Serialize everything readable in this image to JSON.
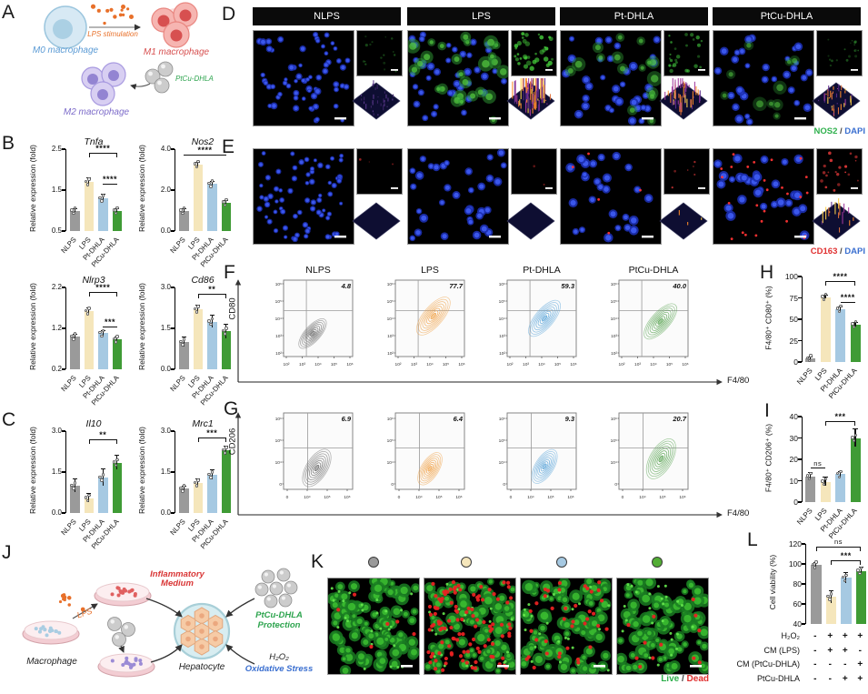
{
  "bar_colors": [
    "#9a9a9a",
    "#f5e6bb",
    "#a6c9e2",
    "#3f9b35"
  ],
  "flow_colors": [
    "#6b6b6b",
    "#f0a044",
    "#59a4d9",
    "#55a24e"
  ],
  "panels": {
    "A": {
      "letter": "A",
      "m0_label": "M0 macrophage",
      "m1_label": "M1 macrophage",
      "m2_label": "M2 macrophage",
      "stim_label": "LPS stimulation",
      "np_label": "PtCu-DHLA"
    },
    "B": {
      "letter": "B"
    },
    "C": {
      "letter": "C"
    },
    "D": {
      "letter": "D",
      "headers": [
        "NLPS",
        "LPS",
        "Pt-DHLA",
        "PtCu-DHLA"
      ],
      "legend": [
        {
          "text": "NOS2",
          "color": "#2eb04c"
        },
        {
          "text": " / ",
          "color": "#444444"
        },
        {
          "text": "DAPI",
          "color": "#3a6fd0"
        }
      ]
    },
    "E": {
      "letter": "E",
      "legend": [
        {
          "text": "CD163",
          "color": "#e03131"
        },
        {
          "text": " / ",
          "color": "#444444"
        },
        {
          "text": "DAPI",
          "color": "#3a6fd0"
        }
      ]
    },
    "F": {
      "letter": "F",
      "headers": [
        "NLPS",
        "LPS",
        "Pt-DHLA",
        "PtCu-DHLA"
      ]
    },
    "G": {
      "letter": "G"
    },
    "H": {
      "letter": "H"
    },
    "I": {
      "letter": "I"
    },
    "J": {
      "letter": "J",
      "labels": {
        "macrophage": "Macrophage",
        "lps": "LPS",
        "inflammatory": "Inflammatory Medium",
        "hepatocyte": "Hepatocyte",
        "protection": "PtCu-DHLA Protection",
        "h2o2": "H₂O₂",
        "oxidative": "Oxidative Stress"
      }
    },
    "K": {
      "letter": "K",
      "dot_colors": [
        "#9a9a9a",
        "#f5e6bb",
        "#a6c9e2",
        "#53ad35"
      ],
      "legend": [
        {
          "text": "Live",
          "color": "#2eb04c"
        },
        {
          "text": " / ",
          "color": "#444444"
        },
        {
          "text": "Dead",
          "color": "#e03131"
        }
      ]
    },
    "L": {
      "letter": "L",
      "treatments": [
        {
          "label": "H₂O₂",
          "signs": [
            "-",
            "+",
            "+",
            "+"
          ]
        },
        {
          "label": "CM (LPS)",
          "signs": [
            "-",
            "+",
            "+",
            "-"
          ]
        },
        {
          "label": "CM (PtCu-DHLA)",
          "signs": [
            "-",
            "-",
            "-",
            "+"
          ]
        },
        {
          "label": "PtCu-DHLA",
          "signs": [
            "-",
            "-",
            "+",
            "+"
          ]
        }
      ]
    }
  },
  "chart_data": [
    {
      "id": "tnfa",
      "panel": "B",
      "type": "bar",
      "title": "Tnfa",
      "ylabel": "Relative expression (fold)",
      "categories": [
        "NLPS",
        "LPS",
        "Pt-DHLA",
        "PtCu-DHLA"
      ],
      "values": [
        1.0,
        1.7,
        1.3,
        1.0
      ],
      "errors": [
        0.04,
        0.08,
        0.09,
        0.03
      ],
      "ylim": [
        0.5,
        2.5
      ],
      "yticks": [
        "0.5",
        "1.5",
        "2.5"
      ],
      "sig": [
        {
          "from": 1,
          "to": 3,
          "label": "****",
          "bracket": true,
          "level": 0.96
        },
        {
          "from": 2,
          "to": 3,
          "label": "****",
          "bracket": false,
          "level": 0.58
        }
      ]
    },
    {
      "id": "nos2",
      "panel": "B",
      "type": "bar",
      "title": "Nos2",
      "ylabel": "Relative expression (fold)",
      "categories": [
        "NLPS",
        "LPS",
        "Pt-DHLA",
        "PtCu-DHLA"
      ],
      "values": [
        1.0,
        3.25,
        2.3,
        1.4
      ],
      "errors": [
        0.05,
        0.08,
        0.1,
        0.06
      ],
      "ylim": [
        0,
        4
      ],
      "yticks": [
        "0.0",
        "2.0",
        "4.0"
      ],
      "sig": [
        {
          "from": 0,
          "to": 3,
          "label": "****",
          "bracket": false,
          "level": 0.93
        }
      ]
    },
    {
      "id": "nlrp3",
      "panel": "B",
      "type": "bar",
      "title": "Nlrp3",
      "ylabel": "Relative expression (fold)",
      "categories": [
        "NLPS",
        "LPS",
        "Pt-DHLA",
        "PtCu-DHLA"
      ],
      "values": [
        1.0,
        1.62,
        1.08,
        0.93
      ],
      "errors": [
        0.04,
        0.06,
        0.05,
        0.05
      ],
      "ylim": [
        0.2,
        2.2
      ],
      "yticks": [
        "0.2",
        "1.2",
        "2.2"
      ],
      "sig": [
        {
          "from": 1,
          "to": 3,
          "label": "****",
          "bracket": true,
          "level": 0.95
        },
        {
          "from": 2,
          "to": 3,
          "label": "***",
          "bracket": false,
          "level": 0.52
        }
      ]
    },
    {
      "id": "cd86",
      "panel": "B",
      "type": "bar",
      "title": "Cd86",
      "ylabel": "Relative expression (fold)",
      "categories": [
        "NLPS",
        "LPS",
        "Pt-DHLA",
        "PtCu-DHLA"
      ],
      "values": [
        1.0,
        2.2,
        1.75,
        1.4
      ],
      "errors": [
        0.18,
        0.12,
        0.22,
        0.25
      ],
      "ylim": [
        0,
        3
      ],
      "yticks": [
        "0.0",
        "1.5",
        "3.0"
      ],
      "sig": [
        {
          "from": 1,
          "to": 3,
          "label": "**",
          "bracket": true,
          "level": 0.92
        }
      ]
    },
    {
      "id": "il10",
      "panel": "C",
      "type": "bar",
      "title": "Il10",
      "ylabel": "Relative expression (fold)",
      "categories": [
        "NLPS",
        "LPS",
        "Pt-DHLA",
        "PtCu-DHLA"
      ],
      "values": [
        1.0,
        0.55,
        1.3,
        1.85
      ],
      "errors": [
        0.22,
        0.15,
        0.3,
        0.25
      ],
      "ylim": [
        0,
        3
      ],
      "yticks": [
        "0.0",
        "1.5",
        "3.0"
      ],
      "sig": [
        {
          "from": 1,
          "to": 3,
          "label": "**",
          "bracket": true,
          "level": 0.9
        }
      ]
    },
    {
      "id": "mrc1",
      "panel": "C",
      "type": "bar",
      "title": "Mrc1",
      "ylabel": "Relative expression (fold)",
      "categories": [
        "NLPS",
        "LPS",
        "Pt-DHLA",
        "PtCu-DHLA"
      ],
      "values": [
        0.9,
        1.1,
        1.4,
        2.3
      ],
      "errors": [
        0.08,
        0.12,
        0.18,
        0.15
      ],
      "ylim": [
        0,
        3
      ],
      "yticks": [
        "0.0",
        "1.5",
        "3.0"
      ],
      "sig": [
        {
          "from": 1,
          "to": 3,
          "label": "***",
          "bracket": true,
          "level": 0.92
        }
      ]
    },
    {
      "id": "F",
      "panel": "F",
      "type": "contour",
      "xlabel": "F4/80",
      "ylabel": "CD80",
      "categories": [
        "NLPS",
        "LPS",
        "Pt-DHLA",
        "PtCu-DHLA"
      ],
      "values": [
        4.8,
        77.7,
        59.3,
        40.0
      ],
      "xticks": [
        "10²",
        "10³",
        "10⁴",
        "10⁵",
        "10⁶"
      ],
      "yticks": [
        "10⁶",
        "10⁵",
        "10⁴",
        "10³",
        "10²"
      ]
    },
    {
      "id": "G",
      "panel": "G",
      "type": "contour",
      "xlabel": "F4/80",
      "ylabel": "CD206",
      "categories": [
        "NLPS",
        "LPS",
        "Pt-DHLA",
        "PtCu-DHLA"
      ],
      "values": [
        6.9,
        6.4,
        9.3,
        20.7
      ],
      "xticks": [
        "0",
        "10⁴",
        "10⁵",
        "10⁶"
      ],
      "yticks": [
        "10⁶",
        "10⁵",
        "10⁴",
        "0"
      ]
    },
    {
      "id": "h",
      "panel": "H",
      "type": "bar",
      "title": "",
      "ylabel": "F4/80⁺ CD80⁺ (%)",
      "categories": [
        "NLPS",
        "LPS",
        "Pt-DHLA",
        "PtCu-DHLA"
      ],
      "values": [
        4,
        76,
        62,
        44
      ],
      "errors": [
        1,
        2,
        2,
        2
      ],
      "ylim": [
        0,
        100
      ],
      "yticks": [
        "0",
        "25",
        "50",
        "75",
        "100"
      ],
      "sig": [
        {
          "from": 1,
          "to": 3,
          "label": "****",
          "bracket": true,
          "level": 0.95
        },
        {
          "from": 2,
          "to": 3,
          "label": "****",
          "bracket": false,
          "level": 0.7
        }
      ]
    },
    {
      "id": "i",
      "panel": "I",
      "type": "bar",
      "title": "",
      "ylabel": "F4/80⁺ CD206⁺ (%)",
      "categories": [
        "NLPS",
        "LPS",
        "Pt-DHLA",
        "PtCu-DHLA"
      ],
      "values": [
        12,
        9.5,
        13,
        30
      ],
      "errors": [
        1.5,
        2,
        1.2,
        4
      ],
      "ylim": [
        0,
        40
      ],
      "yticks": [
        "0",
        "10",
        "20",
        "30",
        "40"
      ],
      "sig": [
        {
          "from": 1,
          "to": 3,
          "label": "***",
          "bracket": true,
          "level": 0.95
        },
        {
          "from": 0,
          "to": 1,
          "label": "ns",
          "bracket": false,
          "level": 0.4
        }
      ]
    },
    {
      "id": "l",
      "panel": "L",
      "type": "bar",
      "title": "",
      "ylabel": "Cell viability (%)",
      "categories": [],
      "values": [
        99,
        67,
        86,
        93
      ],
      "errors": [
        2,
        6,
        5,
        3
      ],
      "ylim": [
        40,
        120
      ],
      "yticks": [
        "40",
        "60",
        "80",
        "100",
        "120"
      ],
      "sig": [
        {
          "from": 0,
          "to": 3,
          "label": "ns",
          "bracket": true,
          "level": 0.97
        },
        {
          "from": 1,
          "to": 3,
          "label": "***",
          "bracket": true,
          "level": 0.8
        }
      ]
    }
  ]
}
